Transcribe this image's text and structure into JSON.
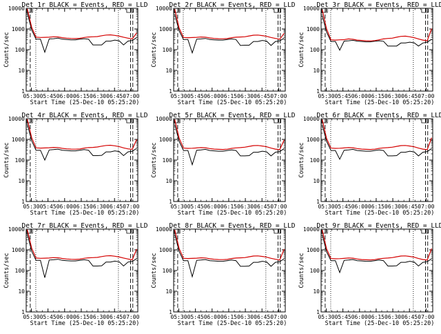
{
  "chart_data": [
    {
      "type": "line",
      "det": "1r",
      "title": "Det 1r BLACK = Events, RED = LLD",
      "xlabel": "Start Time (25-Dec-10 05:25:20)",
      "ylabel": "Counts/sec",
      "yscale": "log",
      "ylim": [
        1,
        10000
      ],
      "x_ticks": [
        "05:30",
        "05:45",
        "06:00",
        "06:15",
        "06:30",
        "06:45",
        "07:00"
      ],
      "y_ticks": [
        "1",
        "10",
        "100",
        "1000",
        "10000"
      ],
      "series": [
        {
          "name": "Events",
          "color": "#000000",
          "y": [
            6000,
            900,
            320,
            320,
            75,
            330,
            340,
            360,
            320,
            310,
            300,
            300,
            320,
            340,
            320,
            170,
            170,
            170,
            260,
            260,
            290,
            270,
            170,
            260,
            280,
            380
          ]
        },
        {
          "name": "LLD",
          "color": "#d40000",
          "y": [
            9500,
            1200,
            400,
            390,
            395,
            400,
            420,
            415,
            380,
            360,
            350,
            345,
            355,
            390,
            410,
            420,
            430,
            470,
            510,
            520,
            490,
            450,
            400,
            360,
            330,
            650
          ]
        }
      ]
    },
    {
      "type": "line",
      "det": "2r",
      "title": "Det 2r BLACK = Events, RED = LLD",
      "xlabel": "Start Time (25-Dec-10 05:25:20)",
      "ylabel": "Counts/sec",
      "yscale": "log",
      "ylim": [
        1,
        10000
      ],
      "x_ticks": [
        "05:30",
        "05:45",
        "06:00",
        "06:15",
        "06:30",
        "06:45",
        "07:00"
      ],
      "y_ticks": [
        "1",
        "10",
        "100",
        "1000",
        "10000"
      ],
      "series": [
        {
          "name": "Events",
          "color": "#000000",
          "y": [
            5000,
            800,
            310,
            310,
            70,
            320,
            330,
            350,
            310,
            300,
            290,
            290,
            310,
            330,
            310,
            160,
            165,
            165,
            250,
            250,
            280,
            260,
            160,
            250,
            270,
            360
          ]
        },
        {
          "name": "LLD",
          "color": "#d40000",
          "y": [
            9000,
            1100,
            390,
            380,
            385,
            395,
            410,
            405,
            370,
            350,
            340,
            335,
            345,
            380,
            400,
            410,
            420,
            460,
            500,
            510,
            480,
            440,
            390,
            350,
            320,
            620
          ]
        }
      ]
    },
    {
      "type": "line",
      "det": "3r",
      "title": "Det 3r BLACK = Events, RED = LLD",
      "xlabel": "Start Time (25-Dec-10 05:25:20)",
      "ylabel": "Counts/sec",
      "yscale": "log",
      "ylim": [
        1,
        10000
      ],
      "x_ticks": [
        "05:30",
        "05:45",
        "06:00",
        "06:15",
        "06:30",
        "06:45",
        "07:00"
      ],
      "y_ticks": [
        "1",
        "10",
        "100",
        "1000",
        "10000"
      ],
      "series": [
        {
          "name": "Events",
          "color": "#000000",
          "y": [
            4500,
            700,
            250,
            250,
            95,
            260,
            270,
            285,
            260,
            250,
            240,
            240,
            255,
            270,
            255,
            150,
            150,
            150,
            210,
            210,
            230,
            215,
            150,
            210,
            230,
            320
          ]
        },
        {
          "name": "LLD",
          "color": "#d40000",
          "y": [
            8500,
            1000,
            300,
            290,
            300,
            305,
            330,
            320,
            290,
            280,
            270,
            265,
            275,
            300,
            330,
            350,
            360,
            400,
            440,
            450,
            420,
            380,
            330,
            290,
            270,
            1050
          ]
        }
      ]
    },
    {
      "type": "line",
      "det": "4r",
      "title": "Det 4r BLACK = Events, RED = LLD",
      "xlabel": "Start Time (25-Dec-10 05:25:20)",
      "ylabel": "Counts/sec",
      "yscale": "log",
      "ylim": [
        1,
        10000
      ],
      "x_ticks": [
        "05:30",
        "05:45",
        "06:00",
        "06:15",
        "06:30",
        "06:45",
        "07:00"
      ],
      "y_ticks": [
        "1",
        "10",
        "100",
        "1000",
        "10000"
      ],
      "series": [
        {
          "name": "Events",
          "color": "#000000",
          "y": [
            5500,
            850,
            300,
            300,
            100,
            310,
            320,
            340,
            300,
            290,
            280,
            280,
            300,
            320,
            300,
            165,
            165,
            170,
            250,
            250,
            280,
            260,
            165,
            250,
            270,
            370
          ]
        },
        {
          "name": "LLD",
          "color": "#d40000",
          "y": [
            9500,
            1200,
            390,
            380,
            385,
            395,
            410,
            405,
            370,
            350,
            340,
            335,
            345,
            380,
            400,
            410,
            430,
            470,
            510,
            520,
            490,
            450,
            390,
            350,
            330,
            1000
          ]
        }
      ]
    },
    {
      "type": "line",
      "det": "5r",
      "title": "Det 5r BLACK = Events, RED = LLD",
      "xlabel": "Start Time (25-Dec-10 05:25:20)",
      "ylabel": "Counts/sec",
      "yscale": "log",
      "ylim": [
        1,
        10000
      ],
      "x_ticks": [
        "05:30",
        "05:45",
        "06:00",
        "06:15",
        "06:30",
        "06:45",
        "07:00"
      ],
      "y_ticks": [
        "1",
        "10",
        "100",
        "1000",
        "10000"
      ],
      "series": [
        {
          "name": "Events",
          "color": "#000000",
          "y": [
            5200,
            800,
            290,
            290,
            60,
            300,
            310,
            330,
            290,
            280,
            270,
            270,
            290,
            310,
            290,
            160,
            160,
            165,
            240,
            240,
            270,
            250,
            160,
            240,
            260,
            360
          ]
        },
        {
          "name": "LLD",
          "color": "#d40000",
          "y": [
            9000,
            1150,
            380,
            370,
            375,
            385,
            400,
            395,
            360,
            340,
            330,
            325,
            335,
            370,
            390,
            400,
            420,
            460,
            500,
            510,
            480,
            440,
            380,
            340,
            320,
            950
          ]
        }
      ]
    },
    {
      "type": "line",
      "det": "6r",
      "title": "Det 6r BLACK = Events, RED = LLD",
      "xlabel": "Start Time (25-Dec-10 05:25:20)",
      "ylabel": "Counts/sec",
      "yscale": "log",
      "ylim": [
        1,
        10000
      ],
      "x_ticks": [
        "05:30",
        "05:45",
        "06:00",
        "06:15",
        "06:30",
        "06:45",
        "07:00"
      ],
      "y_ticks": [
        "1",
        "10",
        "100",
        "1000",
        "10000"
      ],
      "series": [
        {
          "name": "Events",
          "color": "#000000",
          "y": [
            5000,
            800,
            290,
            290,
            110,
            300,
            310,
            330,
            290,
            280,
            270,
            270,
            290,
            310,
            290,
            160,
            160,
            165,
            240,
            240,
            270,
            250,
            160,
            240,
            260,
            360
          ]
        },
        {
          "name": "LLD",
          "color": "#d40000",
          "y": [
            9000,
            1100,
            380,
            370,
            375,
            385,
            400,
            395,
            360,
            340,
            330,
            325,
            335,
            370,
            390,
            400,
            420,
            460,
            500,
            510,
            480,
            440,
            380,
            340,
            320,
            1200
          ]
        }
      ]
    },
    {
      "type": "line",
      "det": "7r",
      "title": "Det 7r BLACK = Events, RED = LLD",
      "xlabel": "Start Time (25-Dec-10 05:25:20)",
      "ylabel": "Counts/sec",
      "yscale": "log",
      "ylim": [
        1,
        10000
      ],
      "x_ticks": [
        "05:30",
        "05:45",
        "06:00",
        "06:15",
        "06:30",
        "06:45",
        "07:00"
      ],
      "y_ticks": [
        "1",
        "10",
        "100",
        "1000",
        "10000"
      ],
      "series": [
        {
          "name": "Events",
          "color": "#000000",
          "y": [
            5800,
            850,
            310,
            310,
            45,
            320,
            330,
            350,
            310,
            300,
            290,
            290,
            310,
            330,
            310,
            165,
            165,
            170,
            255,
            255,
            285,
            265,
            165,
            255,
            275,
            375
          ]
        },
        {
          "name": "LLD",
          "color": "#d40000",
          "y": [
            9500,
            1200,
            400,
            390,
            395,
            400,
            420,
            415,
            380,
            360,
            350,
            345,
            355,
            390,
            410,
            420,
            430,
            470,
            510,
            520,
            490,
            450,
            400,
            360,
            330,
            1100
          ]
        }
      ]
    },
    {
      "type": "line",
      "det": "8r",
      "title": "Det 8r BLACK = Events, RED = LLD",
      "xlabel": "Start Time (25-Dec-10 05:25:20)",
      "ylabel": "Counts/sec",
      "yscale": "log",
      "ylim": [
        1,
        10000
      ],
      "x_ticks": [
        "05:30",
        "05:45",
        "06:00",
        "06:15",
        "06:30",
        "06:45",
        "07:00"
      ],
      "y_ticks": [
        "1",
        "10",
        "100",
        "1000",
        "10000"
      ],
      "series": [
        {
          "name": "Events",
          "color": "#000000",
          "y": [
            5600,
            820,
            300,
            300,
            50,
            310,
            320,
            340,
            300,
            290,
            280,
            280,
            300,
            320,
            300,
            160,
            160,
            165,
            250,
            250,
            280,
            260,
            160,
            250,
            270,
            370
          ]
        },
        {
          "name": "LLD",
          "color": "#d40000",
          "y": [
            9200,
            1150,
            390,
            380,
            385,
            395,
            410,
            405,
            370,
            350,
            340,
            335,
            345,
            380,
            400,
            410,
            420,
            460,
            500,
            510,
            480,
            440,
            390,
            350,
            320,
            1100
          ]
        }
      ]
    },
    {
      "type": "line",
      "det": "9r",
      "title": "Det 9r BLACK = Events, RED = LLD",
      "xlabel": "Start Time (25-Dec-10 05:25:20)",
      "ylabel": "Counts/sec",
      "yscale": "log",
      "ylim": [
        1,
        10000
      ],
      "x_ticks": [
        "05:30",
        "05:45",
        "06:00",
        "06:15",
        "06:30",
        "06:45",
        "07:00"
      ],
      "y_ticks": [
        "1",
        "10",
        "100",
        "1000",
        "10000"
      ],
      "series": [
        {
          "name": "Events",
          "color": "#000000",
          "y": [
            5400,
            800,
            300,
            300,
            80,
            310,
            320,
            340,
            300,
            290,
            280,
            280,
            300,
            320,
            300,
            165,
            165,
            170,
            250,
            250,
            280,
            260,
            165,
            250,
            270,
            370
          ]
        },
        {
          "name": "LLD",
          "color": "#d40000",
          "y": [
            9000,
            1100,
            380,
            370,
            375,
            385,
            400,
            395,
            360,
            340,
            330,
            325,
            335,
            370,
            390,
            400,
            420,
            460,
            500,
            510,
            480,
            440,
            380,
            340,
            320,
            1150
          ]
        }
      ]
    }
  ]
}
